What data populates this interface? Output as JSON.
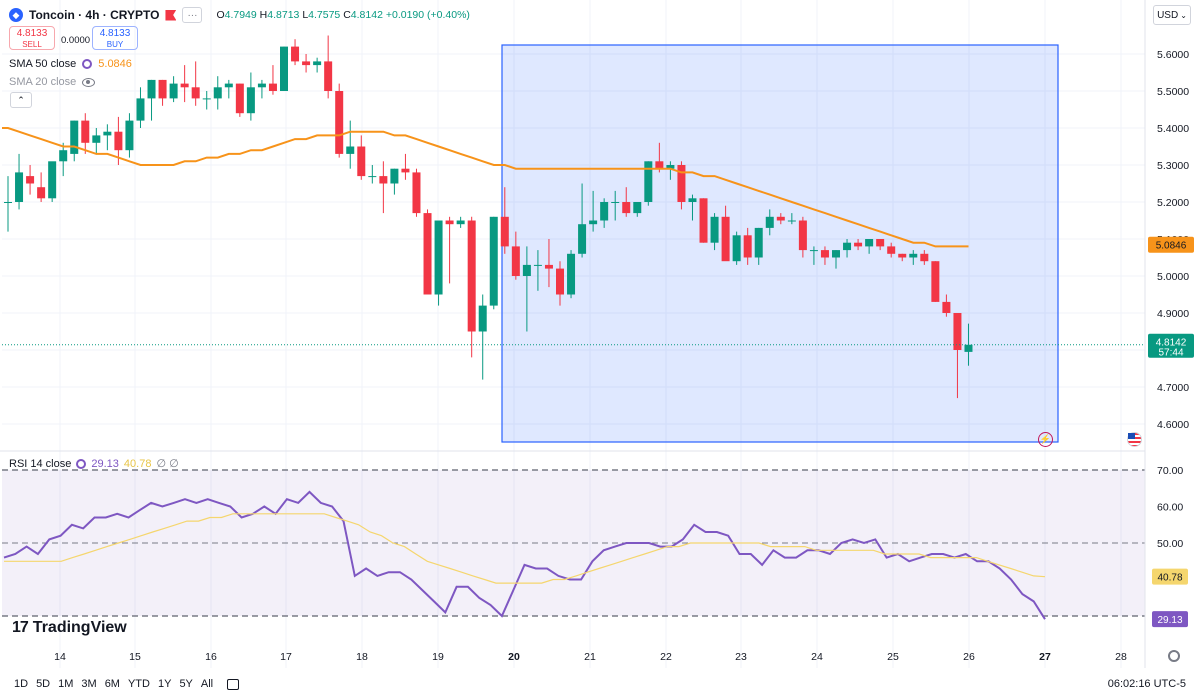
{
  "header": {
    "symbol": "Toncoin · 4h · CRYPTO",
    "ohlc": {
      "o_label": "O",
      "o": "4.7949",
      "h_label": "H",
      "h": "4.8713",
      "l_label": "L",
      "l": "4.7575",
      "c_label": "C",
      "c": "4.8142",
      "change": "+0.0190 (+0.40%)"
    },
    "sell_price": "4.8133",
    "sell_label": "SELL",
    "spread": "0.0000",
    "buy_price": "4.8133",
    "buy_label": "BUY",
    "currency": "USD",
    "collapse_icon": "chevron-up-icon"
  },
  "indicators": {
    "sma50": {
      "label": "SMA 50 close",
      "value": "5.0846"
    },
    "sma20": {
      "label": "SMA 20 close"
    }
  },
  "rsi": {
    "label": "RSI 14 close",
    "value": "29.13",
    "ma_value": "40.78",
    "extra": "∅ ∅"
  },
  "brand": "TradingView",
  "timeframes": [
    "1D",
    "5D",
    "1M",
    "3M",
    "6M",
    "YTD",
    "1Y",
    "5Y",
    "All"
  ],
  "clock": "06:02:16 UTC-5",
  "colors": {
    "up": "#089981",
    "down": "#f23645",
    "sma50": "#f7931a",
    "sma20": "#b2b5be",
    "rsi": "#7e57c2",
    "rsi_ma": "#f5d66e",
    "selection": "#2962ff"
  },
  "chart_data": [
    {
      "type": "candlestick",
      "title": "Toncoin · 4h · CRYPTO",
      "x_ticks": [
        "14",
        "15",
        "16",
        "17",
        "18",
        "19",
        "20",
        "21",
        "22",
        "23",
        "24",
        "25",
        "26",
        "27",
        "28"
      ],
      "y_ticks": [
        4.6,
        4.7,
        4.8,
        4.9,
        5.0,
        5.1,
        5.2,
        5.3,
        5.4,
        5.5,
        5.6
      ],
      "ylim": [
        4.55,
        5.65
      ],
      "last_price": "4.8142",
      "countdown": "57:44",
      "sma50_label": "5.0846",
      "candles": [
        {
          "o": 5.2,
          "h": 5.27,
          "l": 5.12,
          "c": 5.2
        },
        {
          "o": 5.2,
          "h": 5.33,
          "l": 5.18,
          "c": 5.28
        },
        {
          "o": 5.27,
          "h": 5.3,
          "l": 5.22,
          "c": 5.25
        },
        {
          "o": 5.24,
          "h": 5.28,
          "l": 5.2,
          "c": 5.21
        },
        {
          "o": 5.21,
          "h": 5.3,
          "l": 5.2,
          "c": 5.31
        },
        {
          "o": 5.31,
          "h": 5.36,
          "l": 5.27,
          "c": 5.34
        },
        {
          "o": 5.33,
          "h": 5.42,
          "l": 5.31,
          "c": 5.42
        },
        {
          "o": 5.42,
          "h": 5.44,
          "l": 5.33,
          "c": 5.36
        },
        {
          "o": 5.36,
          "h": 5.4,
          "l": 5.33,
          "c": 5.38
        },
        {
          "o": 5.38,
          "h": 5.41,
          "l": 5.34,
          "c": 5.39
        },
        {
          "o": 5.39,
          "h": 5.43,
          "l": 5.3,
          "c": 5.34
        },
        {
          "o": 5.34,
          "h": 5.44,
          "l": 5.32,
          "c": 5.42
        },
        {
          "o": 5.42,
          "h": 5.51,
          "l": 5.4,
          "c": 5.48
        },
        {
          "o": 5.48,
          "h": 5.53,
          "l": 5.42,
          "c": 5.53
        },
        {
          "o": 5.53,
          "h": 5.53,
          "l": 5.46,
          "c": 5.48
        },
        {
          "o": 5.48,
          "h": 5.54,
          "l": 5.47,
          "c": 5.52
        },
        {
          "o": 5.52,
          "h": 5.57,
          "l": 5.47,
          "c": 5.51
        },
        {
          "o": 5.51,
          "h": 5.58,
          "l": 5.46,
          "c": 5.48
        },
        {
          "o": 5.48,
          "h": 5.5,
          "l": 5.45,
          "c": 5.48
        },
        {
          "o": 5.48,
          "h": 5.54,
          "l": 5.45,
          "c": 5.51
        },
        {
          "o": 5.51,
          "h": 5.53,
          "l": 5.48,
          "c": 5.52
        },
        {
          "o": 5.52,
          "h": 5.52,
          "l": 5.43,
          "c": 5.44
        },
        {
          "o": 5.44,
          "h": 5.55,
          "l": 5.42,
          "c": 5.51
        },
        {
          "o": 5.51,
          "h": 5.53,
          "l": 5.48,
          "c": 5.52
        },
        {
          "o": 5.52,
          "h": 5.57,
          "l": 5.49,
          "c": 5.5
        },
        {
          "o": 5.5,
          "h": 5.62,
          "l": 5.5,
          "c": 5.62
        },
        {
          "o": 5.62,
          "h": 5.64,
          "l": 5.57,
          "c": 5.58
        },
        {
          "o": 5.58,
          "h": 5.6,
          "l": 5.55,
          "c": 5.57
        },
        {
          "o": 5.57,
          "h": 5.59,
          "l": 5.55,
          "c": 5.58
        },
        {
          "o": 5.58,
          "h": 5.65,
          "l": 5.48,
          "c": 5.5
        },
        {
          "o": 5.5,
          "h": 5.52,
          "l": 5.32,
          "c": 5.33
        },
        {
          "o": 5.33,
          "h": 5.42,
          "l": 5.29,
          "c": 5.35
        },
        {
          "o": 5.35,
          "h": 5.38,
          "l": 5.26,
          "c": 5.27
        },
        {
          "o": 5.27,
          "h": 5.3,
          "l": 5.25,
          "c": 5.27
        },
        {
          "o": 5.27,
          "h": 5.31,
          "l": 5.17,
          "c": 5.25
        },
        {
          "o": 5.25,
          "h": 5.29,
          "l": 5.22,
          "c": 5.29
        },
        {
          "o": 5.29,
          "h": 5.33,
          "l": 5.26,
          "c": 5.28
        },
        {
          "o": 5.28,
          "h": 5.29,
          "l": 5.16,
          "c": 5.17
        },
        {
          "o": 5.17,
          "h": 5.18,
          "l": 4.95,
          "c": 4.95
        },
        {
          "o": 4.95,
          "h": 5.15,
          "l": 4.92,
          "c": 5.15
        },
        {
          "o": 5.15,
          "h": 5.16,
          "l": 4.98,
          "c": 5.14
        },
        {
          "o": 5.14,
          "h": 5.16,
          "l": 5.13,
          "c": 5.15
        },
        {
          "o": 5.15,
          "h": 5.16,
          "l": 4.78,
          "c": 4.85
        },
        {
          "o": 4.85,
          "h": 4.95,
          "l": 4.72,
          "c": 4.92
        },
        {
          "o": 4.92,
          "h": 5.16,
          "l": 4.91,
          "c": 5.16
        },
        {
          "o": 5.16,
          "h": 5.24,
          "l": 5.06,
          "c": 5.08
        },
        {
          "o": 5.08,
          "h": 5.12,
          "l": 4.99,
          "c": 5.0
        },
        {
          "o": 5.0,
          "h": 5.08,
          "l": 4.85,
          "c": 5.03
        },
        {
          "o": 5.03,
          "h": 5.07,
          "l": 4.96,
          "c": 5.03
        },
        {
          "o": 5.03,
          "h": 5.1,
          "l": 4.97,
          "c": 5.02
        },
        {
          "o": 5.02,
          "h": 5.04,
          "l": 4.92,
          "c": 4.95
        },
        {
          "o": 4.95,
          "h": 5.07,
          "l": 4.94,
          "c": 5.06
        },
        {
          "o": 5.06,
          "h": 5.25,
          "l": 5.05,
          "c": 5.14
        },
        {
          "o": 5.14,
          "h": 5.23,
          "l": 5.12,
          "c": 5.15
        },
        {
          "o": 5.15,
          "h": 5.21,
          "l": 5.13,
          "c": 5.2
        },
        {
          "o": 5.2,
          "h": 5.23,
          "l": 5.15,
          "c": 5.2
        },
        {
          "o": 5.2,
          "h": 5.24,
          "l": 5.16,
          "c": 5.17
        },
        {
          "o": 5.17,
          "h": 5.2,
          "l": 5.16,
          "c": 5.2
        },
        {
          "o": 5.2,
          "h": 5.31,
          "l": 5.19,
          "c": 5.31
        },
        {
          "o": 5.31,
          "h": 5.36,
          "l": 5.28,
          "c": 5.29
        },
        {
          "o": 5.29,
          "h": 5.31,
          "l": 5.26,
          "c": 5.3
        },
        {
          "o": 5.3,
          "h": 5.31,
          "l": 5.18,
          "c": 5.2
        },
        {
          "o": 5.2,
          "h": 5.22,
          "l": 5.15,
          "c": 5.21
        },
        {
          "o": 5.21,
          "h": 5.21,
          "l": 5.09,
          "c": 5.09
        },
        {
          "o": 5.09,
          "h": 5.17,
          "l": 5.07,
          "c": 5.16
        },
        {
          "o": 5.16,
          "h": 5.19,
          "l": 5.05,
          "c": 5.04
        },
        {
          "o": 5.04,
          "h": 5.12,
          "l": 5.03,
          "c": 5.11
        },
        {
          "o": 5.11,
          "h": 5.13,
          "l": 5.03,
          "c": 5.05
        },
        {
          "o": 5.05,
          "h": 5.13,
          "l": 5.03,
          "c": 5.13
        },
        {
          "o": 5.13,
          "h": 5.18,
          "l": 5.11,
          "c": 5.16
        },
        {
          "o": 5.16,
          "h": 5.17,
          "l": 5.14,
          "c": 5.15
        },
        {
          "o": 5.15,
          "h": 5.17,
          "l": 5.14,
          "c": 5.15
        },
        {
          "o": 5.15,
          "h": 5.16,
          "l": 5.05,
          "c": 5.07
        },
        {
          "o": 5.07,
          "h": 5.08,
          "l": 5.03,
          "c": 5.07
        },
        {
          "o": 5.07,
          "h": 5.08,
          "l": 5.03,
          "c": 5.05
        },
        {
          "o": 5.05,
          "h": 5.07,
          "l": 5.02,
          "c": 5.07
        },
        {
          "o": 5.07,
          "h": 5.1,
          "l": 5.05,
          "c": 5.09
        },
        {
          "o": 5.09,
          "h": 5.1,
          "l": 5.07,
          "c": 5.08
        },
        {
          "o": 5.08,
          "h": 5.1,
          "l": 5.06,
          "c": 5.1
        },
        {
          "o": 5.1,
          "h": 5.1,
          "l": 5.07,
          "c": 5.08
        },
        {
          "o": 5.08,
          "h": 5.09,
          "l": 5.05,
          "c": 5.06
        },
        {
          "o": 5.06,
          "h": 5.06,
          "l": 5.04,
          "c": 5.05
        },
        {
          "o": 5.05,
          "h": 5.07,
          "l": 5.03,
          "c": 5.06
        },
        {
          "o": 5.06,
          "h": 5.07,
          "l": 5.03,
          "c": 5.04
        },
        {
          "o": 5.04,
          "h": 5.04,
          "l": 4.93,
          "c": 4.93
        },
        {
          "o": 4.93,
          "h": 4.95,
          "l": 4.89,
          "c": 4.9
        },
        {
          "o": 4.9,
          "h": 4.9,
          "l": 4.67,
          "c": 4.8
        },
        {
          "o": 4.7949,
          "h": 4.8713,
          "l": 4.7575,
          "c": 4.8142
        }
      ],
      "sma50": [
        5.4,
        5.39,
        5.38,
        5.37,
        5.36,
        5.35,
        5.35,
        5.34,
        5.33,
        5.33,
        5.32,
        5.31,
        5.3,
        5.3,
        5.3,
        5.3,
        5.31,
        5.31,
        5.32,
        5.32,
        5.33,
        5.33,
        5.34,
        5.34,
        5.35,
        5.36,
        5.37,
        5.37,
        5.38,
        5.38,
        5.38,
        5.39,
        5.39,
        5.39,
        5.39,
        5.38,
        5.38,
        5.37,
        5.36,
        5.35,
        5.34,
        5.33,
        5.32,
        5.31,
        5.3,
        5.3,
        5.29,
        5.29,
        5.29,
        5.29,
        5.29,
        5.29,
        5.29,
        5.29,
        5.29,
        5.29,
        5.29,
        5.29,
        5.29,
        5.29,
        5.29,
        5.28,
        5.28,
        5.27,
        5.27,
        5.26,
        5.25,
        5.24,
        5.23,
        5.22,
        5.21,
        5.2,
        5.19,
        5.18,
        5.17,
        5.16,
        5.15,
        5.14,
        5.13,
        5.12,
        5.11,
        5.1,
        5.09,
        5.09,
        5.08,
        5.08,
        5.08,
        5.08
      ]
    },
    {
      "type": "line",
      "title": "RSI 14 close",
      "y_ticks": [
        30,
        40,
        50,
        60,
        70
      ],
      "ylim": [
        26,
        72
      ],
      "bands": [
        30,
        50,
        70
      ],
      "last_values": [
        "29.13",
        "40.78"
      ],
      "rsi": [
        46,
        47,
        49,
        47,
        51,
        52,
        55,
        54,
        57,
        57,
        58,
        57,
        59,
        61,
        60,
        61,
        62,
        61,
        62,
        61,
        60,
        57,
        58,
        60,
        58,
        62,
        61,
        64,
        61,
        60,
        56,
        41,
        43,
        41,
        42,
        42,
        40,
        37,
        34,
        31,
        38,
        38,
        35,
        33,
        30,
        37,
        44,
        43,
        43,
        41,
        40,
        40,
        45,
        48,
        49,
        50,
        50,
        50,
        49,
        49,
        51,
        55,
        53,
        53,
        52,
        47,
        47,
        44,
        48,
        46,
        46,
        48,
        48,
        47,
        50,
        51,
        50,
        51,
        46,
        47,
        45,
        46,
        47,
        47,
        46,
        47,
        45,
        45,
        43,
        40,
        36,
        34,
        29.13
      ],
      "rsi_ma": [
        45,
        45,
        45,
        45,
        45,
        45,
        46,
        47,
        48,
        49,
        50,
        51,
        52,
        53,
        54,
        55,
        56,
        56,
        57,
        57,
        58,
        58,
        58,
        58,
        58,
        58,
        58,
        58,
        58,
        57,
        56,
        55,
        53,
        52,
        50,
        49,
        47,
        45,
        44,
        43,
        42,
        41,
        40,
        39,
        39,
        39,
        39,
        39,
        40,
        40,
        41,
        42,
        43,
        44,
        45,
        46,
        47,
        48,
        49,
        49,
        50,
        50,
        50,
        50,
        50,
        50,
        50,
        49,
        49,
        49,
        49,
        48,
        48,
        48,
        48,
        48,
        48,
        47,
        47,
        47,
        47,
        46,
        46,
        46,
        46,
        46,
        45,
        44,
        43,
        42,
        41,
        40.78
      ]
    }
  ]
}
